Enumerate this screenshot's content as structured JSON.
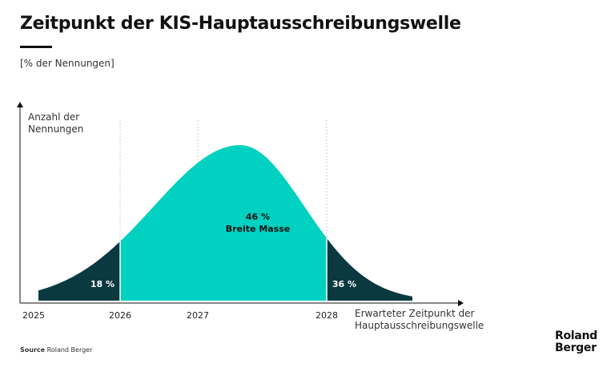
{
  "title": "Zeitpunkt der KIS-Hauptausschreibungswelle",
  "subtitle": "[% der Nennungen]",
  "source_label": "Source",
  "source": "Roland Berger",
  "logo": [
    "Roland",
    "Berger"
  ],
  "chart_data": {
    "type": "area",
    "y_label": "Anzahl der Nennungen",
    "x_label": "Erwarteter Zeitpunkt der Hauptausschreibungswelle",
    "categories": [
      "2025",
      "2026",
      "2027",
      "2028"
    ],
    "segments": {
      "values": [
        18,
        46,
        36
      ],
      "value_labels": [
        "18 %",
        "46 %",
        "36 %"
      ],
      "names": [
        null,
        "Breite Masse",
        null
      ],
      "colors": [
        "#0a3a3f",
        "#00d1c1",
        "#0a3a3f"
      ]
    }
  }
}
